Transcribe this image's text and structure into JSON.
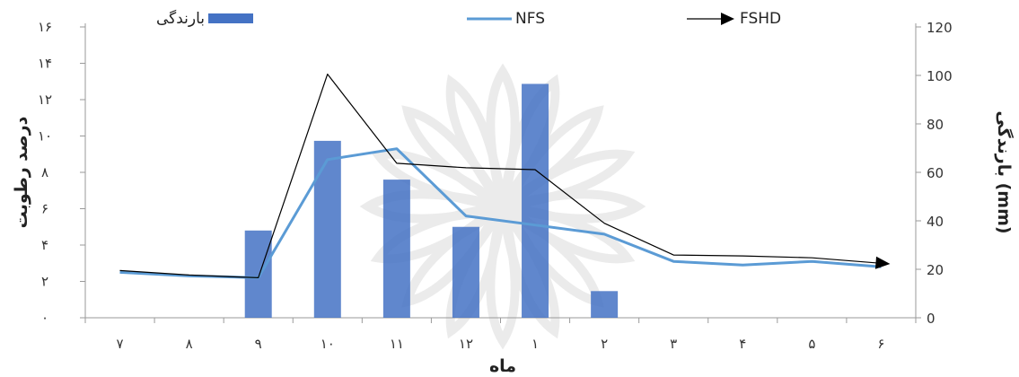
{
  "chart_data": {
    "type": "bar+line",
    "x_axis": {
      "label": "ماه",
      "categories": [
        "۷",
        "۸",
        "۹",
        "۱۰",
        "۱۱",
        "۱۲",
        "۱",
        "۲",
        "۳",
        "۴",
        "۵",
        "۶"
      ]
    },
    "y_left": {
      "label": "درصد رطوبت",
      "ticks": [
        "۰",
        "۲",
        "۴",
        "۶",
        "۸",
        "۱۰",
        "۱۲",
        "۱۴",
        "۱۶"
      ],
      "range": [
        0,
        16
      ]
    },
    "y_right": {
      "label": "بارندگی (mm)",
      "ticks": [
        "0",
        "20",
        "40",
        "60",
        "80",
        "100",
        "120"
      ],
      "range": [
        0,
        120
      ]
    },
    "legend_position": "top",
    "series": [
      {
        "name": "بارندگی",
        "kind": "bar",
        "axis": "right",
        "color": "#4472C4",
        "values": [
          0,
          0,
          36,
          73,
          57,
          37.5,
          96.5,
          11,
          0,
          0,
          0,
          0
        ]
      },
      {
        "name": "NFS",
        "kind": "line",
        "axis": "left",
        "color": "#5B9BD5",
        "values": [
          2.5,
          2.3,
          2.2,
          8.7,
          9.3,
          5.6,
          5.1,
          4.6,
          3.1,
          2.9,
          3.1,
          2.8
        ]
      },
      {
        "name": "FSHD",
        "kind": "line",
        "axis": "left",
        "color": "#000000",
        "values": [
          2.6,
          2.35,
          2.2,
          13.4,
          8.5,
          8.25,
          8.15,
          5.2,
          3.45,
          3.4,
          3.3,
          3.0
        ]
      }
    ]
  }
}
